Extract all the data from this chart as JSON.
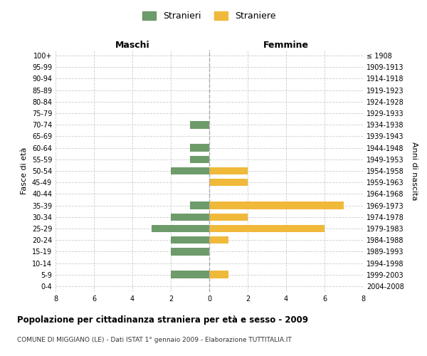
{
  "age_groups": [
    "100+",
    "95-99",
    "90-94",
    "85-89",
    "80-84",
    "75-79",
    "70-74",
    "65-69",
    "60-64",
    "55-59",
    "50-54",
    "45-49",
    "40-44",
    "35-39",
    "30-34",
    "25-29",
    "20-24",
    "15-19",
    "10-14",
    "5-9",
    "0-4"
  ],
  "birth_years": [
    "≤ 1908",
    "1909-1913",
    "1914-1918",
    "1919-1923",
    "1924-1928",
    "1929-1933",
    "1934-1938",
    "1939-1943",
    "1944-1948",
    "1949-1953",
    "1954-1958",
    "1959-1963",
    "1964-1968",
    "1969-1973",
    "1974-1978",
    "1979-1983",
    "1984-1988",
    "1989-1993",
    "1994-1998",
    "1999-2003",
    "2004-2008"
  ],
  "maschi": [
    0,
    0,
    0,
    0,
    0,
    0,
    1,
    0,
    1,
    1,
    2,
    0,
    0,
    1,
    2,
    3,
    2,
    2,
    0,
    2,
    0
  ],
  "femmine": [
    0,
    0,
    0,
    0,
    0,
    0,
    0,
    0,
    0,
    0,
    2,
    2,
    0,
    7,
    2,
    6,
    1,
    0,
    0,
    1,
    0
  ],
  "color_maschi": "#6e9b6a",
  "color_femmine": "#f0b93a",
  "title": "Popolazione per cittadinanza straniera per età e sesso - 2009",
  "subtitle": "COMUNE DI MIGGIANO (LE) - Dati ISTAT 1° gennaio 2009 - Elaborazione TUTTITALIA.IT",
  "xlabel_left": "Maschi",
  "xlabel_right": "Femmine",
  "ylabel_left": "Fasce di età",
  "ylabel_right": "Anni di nascita",
  "legend_stranieri": "Stranieri",
  "legend_straniere": "Straniere",
  "xlim": 8,
  "bg_color": "#ffffff",
  "grid_color": "#cccccc"
}
